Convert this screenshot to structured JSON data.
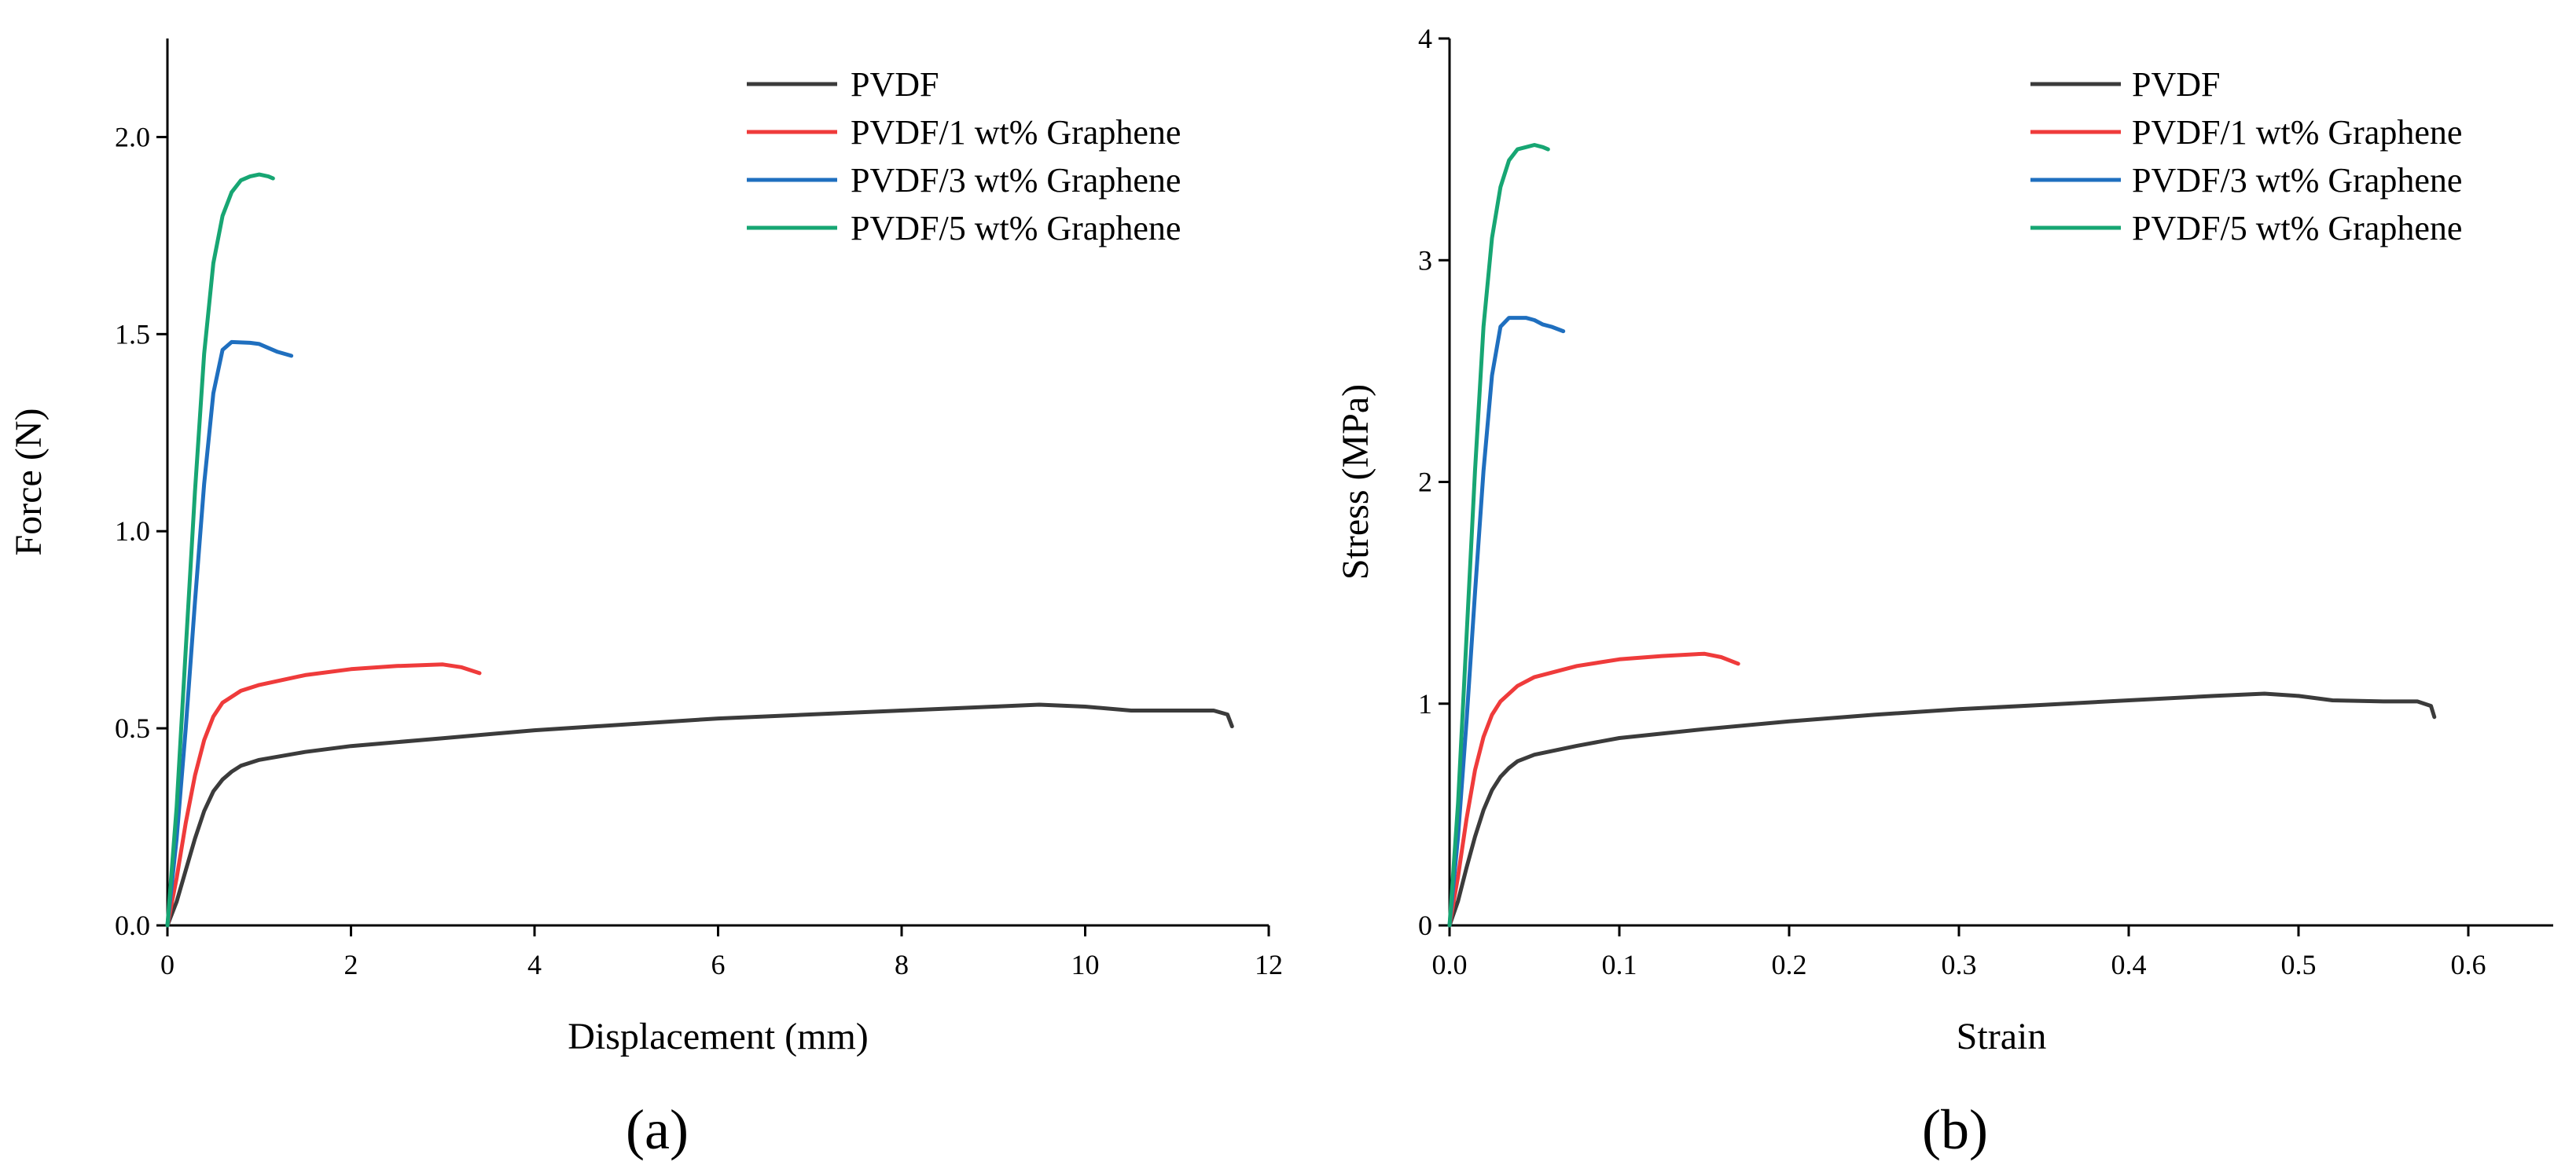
{
  "chart_data": [
    {
      "type": "line",
      "panel": "a",
      "caption": "(a)",
      "xlabel": "Displacement (mm)",
      "ylabel": "Force (N)",
      "xlim": [
        0,
        12
      ],
      "ylim": [
        0,
        2.25
      ],
      "xticks": [
        0,
        2,
        4,
        6,
        8,
        10,
        12
      ],
      "yticks": [
        0.0,
        0.5,
        1.0,
        1.5,
        2.0
      ],
      "xtick_labels": [
        "0",
        "2",
        "4",
        "6",
        "8",
        "10",
        "12"
      ],
      "ytick_labels": [
        "0.0",
        "0.5",
        "1.0",
        "1.5",
        "2.0"
      ],
      "legend_position": "top-right",
      "series": [
        {
          "name": "PVDF",
          "color": "#3b3b3b",
          "points": [
            [
              0,
              0
            ],
            [
              0.1,
              0.06
            ],
            [
              0.2,
              0.14
            ],
            [
              0.3,
              0.22
            ],
            [
              0.4,
              0.29
            ],
            [
              0.5,
              0.34
            ],
            [
              0.6,
              0.37
            ],
            [
              0.7,
              0.39
            ],
            [
              0.8,
              0.405
            ],
            [
              1.0,
              0.42
            ],
            [
              1.5,
              0.44
            ],
            [
              2,
              0.455
            ],
            [
              3,
              0.475
            ],
            [
              4,
              0.495
            ],
            [
              5,
              0.51
            ],
            [
              6,
              0.525
            ],
            [
              7,
              0.535
            ],
            [
              8,
              0.545
            ],
            [
              9,
              0.555
            ],
            [
              9.5,
              0.56
            ],
            [
              10,
              0.555
            ],
            [
              10.5,
              0.545
            ],
            [
              11,
              0.545
            ],
            [
              11.4,
              0.545
            ],
            [
              11.55,
              0.535
            ],
            [
              11.6,
              0.505
            ]
          ]
        },
        {
          "name": "PVDF/1 wt% Graphene",
          "color": "#ef3b3b",
          "points": [
            [
              0,
              0
            ],
            [
              0.1,
              0.12
            ],
            [
              0.2,
              0.26
            ],
            [
              0.3,
              0.38
            ],
            [
              0.4,
              0.47
            ],
            [
              0.5,
              0.53
            ],
            [
              0.6,
              0.565
            ],
            [
              0.8,
              0.595
            ],
            [
              1.0,
              0.61
            ],
            [
              1.5,
              0.635
            ],
            [
              2,
              0.65
            ],
            [
              2.5,
              0.658
            ],
            [
              3,
              0.662
            ],
            [
              3.2,
              0.655
            ],
            [
              3.4,
              0.64
            ]
          ]
        },
        {
          "name": "PVDF/3 wt% Graphene",
          "color": "#1f6fbf",
          "points": [
            [
              0,
              0
            ],
            [
              0.1,
              0.22
            ],
            [
              0.2,
              0.5
            ],
            [
              0.3,
              0.82
            ],
            [
              0.4,
              1.12
            ],
            [
              0.5,
              1.35
            ],
            [
              0.6,
              1.46
            ],
            [
              0.7,
              1.48
            ],
            [
              0.9,
              1.478
            ],
            [
              1.0,
              1.475
            ],
            [
              1.1,
              1.465
            ],
            [
              1.2,
              1.455
            ],
            [
              1.35,
              1.445
            ]
          ]
        },
        {
          "name": "PVDF/5 wt% Graphene",
          "color": "#17a673",
          "points": [
            [
              0,
              0
            ],
            [
              0.1,
              0.3
            ],
            [
              0.2,
              0.7
            ],
            [
              0.3,
              1.1
            ],
            [
              0.4,
              1.45
            ],
            [
              0.5,
              1.68
            ],
            [
              0.6,
              1.8
            ],
            [
              0.7,
              1.86
            ],
            [
              0.8,
              1.89
            ],
            [
              0.9,
              1.9
            ],
            [
              1.0,
              1.905
            ],
            [
              1.1,
              1.9
            ],
            [
              1.15,
              1.895
            ]
          ]
        }
      ]
    },
    {
      "type": "line",
      "panel": "b",
      "caption": "(b)",
      "xlabel": "Strain",
      "ylabel": "Stress (MPa)",
      "xlim": [
        0,
        0.65
      ],
      "ylim": [
        0,
        4
      ],
      "xticks": [
        0,
        0.1,
        0.2,
        0.3,
        0.4,
        0.5,
        0.6
      ],
      "yticks": [
        0,
        1,
        2,
        3,
        4
      ],
      "xtick_labels": [
        "0.0",
        "0.1",
        "0.2",
        "0.3",
        "0.4",
        "0.5",
        "0.6"
      ],
      "ytick_labels": [
        "0",
        "1",
        "2",
        "3",
        "4"
      ],
      "legend_position": "top-right",
      "series": [
        {
          "name": "PVDF",
          "color": "#3b3b3b",
          "points": [
            [
              0,
              0
            ],
            [
              0.005,
              0.11
            ],
            [
              0.01,
              0.26
            ],
            [
              0.015,
              0.4
            ],
            [
              0.02,
              0.52
            ],
            [
              0.025,
              0.61
            ],
            [
              0.03,
              0.67
            ],
            [
              0.035,
              0.71
            ],
            [
              0.04,
              0.74
            ],
            [
              0.05,
              0.77
            ],
            [
              0.075,
              0.81
            ],
            [
              0.1,
              0.845
            ],
            [
              0.15,
              0.885
            ],
            [
              0.2,
              0.92
            ],
            [
              0.25,
              0.95
            ],
            [
              0.3,
              0.975
            ],
            [
              0.35,
              0.995
            ],
            [
              0.4,
              1.015
            ],
            [
              0.45,
              1.035
            ],
            [
              0.48,
              1.045
            ],
            [
              0.5,
              1.035
            ],
            [
              0.52,
              1.015
            ],
            [
              0.55,
              1.01
            ],
            [
              0.57,
              1.01
            ],
            [
              0.578,
              0.99
            ],
            [
              0.58,
              0.94
            ]
          ]
        },
        {
          "name": "PVDF/1 wt% Graphene",
          "color": "#ef3b3b",
          "points": [
            [
              0,
              0
            ],
            [
              0.005,
              0.22
            ],
            [
              0.01,
              0.48
            ],
            [
              0.015,
              0.7
            ],
            [
              0.02,
              0.85
            ],
            [
              0.025,
              0.95
            ],
            [
              0.03,
              1.01
            ],
            [
              0.04,
              1.08
            ],
            [
              0.05,
              1.12
            ],
            [
              0.075,
              1.17
            ],
            [
              0.1,
              1.2
            ],
            [
              0.125,
              1.215
            ],
            [
              0.15,
              1.225
            ],
            [
              0.16,
              1.21
            ],
            [
              0.17,
              1.18
            ]
          ]
        },
        {
          "name": "PVDF/3 wt% Graphene",
          "color": "#1f6fbf",
          "points": [
            [
              0,
              0
            ],
            [
              0.005,
              0.4
            ],
            [
              0.01,
              0.92
            ],
            [
              0.015,
              1.5
            ],
            [
              0.02,
              2.05
            ],
            [
              0.025,
              2.48
            ],
            [
              0.03,
              2.7
            ],
            [
              0.035,
              2.74
            ],
            [
              0.045,
              2.74
            ],
            [
              0.05,
              2.73
            ],
            [
              0.055,
              2.71
            ],
            [
              0.06,
              2.7
            ],
            [
              0.067,
              2.68
            ]
          ]
        },
        {
          "name": "PVDF/5 wt% Graphene",
          "color": "#17a673",
          "points": [
            [
              0,
              0
            ],
            [
              0.005,
              0.55
            ],
            [
              0.01,
              1.3
            ],
            [
              0.015,
              2.05
            ],
            [
              0.02,
              2.7
            ],
            [
              0.025,
              3.1
            ],
            [
              0.03,
              3.33
            ],
            [
              0.035,
              3.45
            ],
            [
              0.04,
              3.5
            ],
            [
              0.045,
              3.51
            ],
            [
              0.05,
              3.52
            ],
            [
              0.055,
              3.51
            ],
            [
              0.058,
              3.5
            ]
          ]
        }
      ]
    }
  ]
}
